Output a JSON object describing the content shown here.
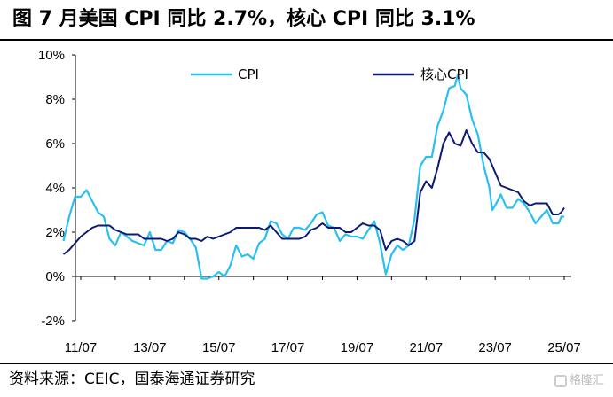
{
  "title": "图   7 月美国 CPI 同比 2.7%，核心 CPI 同比 3.1%",
  "source": "资料来源：CEIC，国泰海通证券研究",
  "watermark": "格隆汇",
  "chart_data": {
    "type": "line",
    "title": "图   7 月美国 CPI 同比 2.7%，核心 CPI 同比 3.1%",
    "xlabel": "",
    "ylabel": "",
    "x_ticks": [
      "11/07",
      "13/07",
      "15/07",
      "17/07",
      "19/07",
      "21/07",
      "23/07",
      "25/07"
    ],
    "y_ticks": [
      "-2%",
      "0%",
      "2%",
      "4%",
      "6%",
      "8%",
      "10%"
    ],
    "ylim": [
      -2,
      10
    ],
    "y_unit": "%",
    "grid": false,
    "legend_position": "top",
    "series": [
      {
        "name": "CPI",
        "color": "#29c0f0",
        "points": [
          [
            "2011-01",
            1.6
          ],
          [
            "2011-03",
            2.7
          ],
          [
            "2011-05",
            3.6
          ],
          [
            "2011-07",
            3.6
          ],
          [
            "2011-09",
            3.9
          ],
          [
            "2011-11",
            3.4
          ],
          [
            "2012-01",
            2.9
          ],
          [
            "2012-03",
            2.7
          ],
          [
            "2012-05",
            1.7
          ],
          [
            "2012-07",
            1.4
          ],
          [
            "2012-09",
            2.0
          ],
          [
            "2012-11",
            1.8
          ],
          [
            "2013-01",
            1.6
          ],
          [
            "2013-03",
            1.5
          ],
          [
            "2013-05",
            1.4
          ],
          [
            "2013-07",
            2.0
          ],
          [
            "2013-09",
            1.2
          ],
          [
            "2013-11",
            1.2
          ],
          [
            "2014-01",
            1.6
          ],
          [
            "2014-03",
            1.5
          ],
          [
            "2014-05",
            2.1
          ],
          [
            "2014-07",
            2.0
          ],
          [
            "2014-09",
            1.7
          ],
          [
            "2014-11",
            1.3
          ],
          [
            "2015-01",
            -0.1
          ],
          [
            "2015-03",
            -0.1
          ],
          [
            "2015-05",
            0.0
          ],
          [
            "2015-07",
            0.2
          ],
          [
            "2015-09",
            0.0
          ],
          [
            "2015-11",
            0.5
          ],
          [
            "2016-01",
            1.4
          ],
          [
            "2016-03",
            0.9
          ],
          [
            "2016-05",
            1.0
          ],
          [
            "2016-07",
            0.8
          ],
          [
            "2016-09",
            1.5
          ],
          [
            "2016-11",
            1.7
          ],
          [
            "2017-01",
            2.5
          ],
          [
            "2017-03",
            2.4
          ],
          [
            "2017-05",
            1.9
          ],
          [
            "2017-07",
            1.7
          ],
          [
            "2017-09",
            2.2
          ],
          [
            "2017-11",
            2.2
          ],
          [
            "2018-01",
            2.1
          ],
          [
            "2018-03",
            2.4
          ],
          [
            "2018-05",
            2.8
          ],
          [
            "2018-07",
            2.9
          ],
          [
            "2018-09",
            2.3
          ],
          [
            "2018-11",
            2.2
          ],
          [
            "2019-01",
            1.6
          ],
          [
            "2019-03",
            1.9
          ],
          [
            "2019-05",
            1.8
          ],
          [
            "2019-07",
            1.8
          ],
          [
            "2019-09",
            1.7
          ],
          [
            "2019-11",
            2.1
          ],
          [
            "2020-01",
            2.5
          ],
          [
            "2020-03",
            1.5
          ],
          [
            "2020-05",
            0.1
          ],
          [
            "2020-07",
            1.0
          ],
          [
            "2020-09",
            1.4
          ],
          [
            "2020-11",
            1.2
          ],
          [
            "2021-01",
            1.4
          ],
          [
            "2021-03",
            2.6
          ],
          [
            "2021-05",
            5.0
          ],
          [
            "2021-07",
            5.4
          ],
          [
            "2021-09",
            5.4
          ],
          [
            "2021-11",
            6.8
          ],
          [
            "2022-01",
            7.5
          ],
          [
            "2022-03",
            8.5
          ],
          [
            "2022-05",
            8.6
          ],
          [
            "2022-06",
            9.1
          ],
          [
            "2022-07",
            8.5
          ],
          [
            "2022-09",
            8.2
          ],
          [
            "2022-11",
            7.1
          ],
          [
            "2023-01",
            6.4
          ],
          [
            "2023-03",
            5.0
          ],
          [
            "2023-05",
            4.0
          ],
          [
            "2023-06",
            3.0
          ],
          [
            "2023-07",
            3.2
          ],
          [
            "2023-09",
            3.7
          ],
          [
            "2023-11",
            3.1
          ],
          [
            "2024-01",
            3.1
          ],
          [
            "2024-03",
            3.5
          ],
          [
            "2024-05",
            3.3
          ],
          [
            "2024-07",
            2.9
          ],
          [
            "2024-09",
            2.4
          ],
          [
            "2024-11",
            2.7
          ],
          [
            "2025-01",
            3.0
          ],
          [
            "2025-03",
            2.4
          ],
          [
            "2025-05",
            2.4
          ],
          [
            "2025-06",
            2.7
          ],
          [
            "2025-07",
            2.7
          ]
        ]
      },
      {
        "name": "核心CPI",
        "color": "#0d1a73",
        "points": [
          [
            "2011-01",
            1.0
          ],
          [
            "2011-03",
            1.2
          ],
          [
            "2011-05",
            1.5
          ],
          [
            "2011-07",
            1.8
          ],
          [
            "2011-09",
            2.0
          ],
          [
            "2011-11",
            2.2
          ],
          [
            "2012-01",
            2.3
          ],
          [
            "2012-03",
            2.3
          ],
          [
            "2012-05",
            2.3
          ],
          [
            "2012-07",
            2.1
          ],
          [
            "2012-09",
            2.0
          ],
          [
            "2012-11",
            1.9
          ],
          [
            "2013-01",
            1.9
          ],
          [
            "2013-03",
            1.9
          ],
          [
            "2013-05",
            1.7
          ],
          [
            "2013-07",
            1.7
          ],
          [
            "2013-09",
            1.7
          ],
          [
            "2013-11",
            1.7
          ],
          [
            "2014-01",
            1.6
          ],
          [
            "2014-03",
            1.7
          ],
          [
            "2014-05",
            2.0
          ],
          [
            "2014-07",
            1.9
          ],
          [
            "2014-09",
            1.7
          ],
          [
            "2014-11",
            1.7
          ],
          [
            "2015-01",
            1.6
          ],
          [
            "2015-03",
            1.8
          ],
          [
            "2015-05",
            1.7
          ],
          [
            "2015-07",
            1.8
          ],
          [
            "2015-09",
            1.9
          ],
          [
            "2015-11",
            2.0
          ],
          [
            "2016-01",
            2.2
          ],
          [
            "2016-03",
            2.2
          ],
          [
            "2016-05",
            2.2
          ],
          [
            "2016-07",
            2.2
          ],
          [
            "2016-09",
            2.2
          ],
          [
            "2016-11",
            2.1
          ],
          [
            "2017-01",
            2.3
          ],
          [
            "2017-03",
            2.0
          ],
          [
            "2017-05",
            1.7
          ],
          [
            "2017-07",
            1.7
          ],
          [
            "2017-09",
            1.7
          ],
          [
            "2017-11",
            1.7
          ],
          [
            "2018-01",
            1.8
          ],
          [
            "2018-03",
            2.1
          ],
          [
            "2018-05",
            2.2
          ],
          [
            "2018-07",
            2.4
          ],
          [
            "2018-09",
            2.2
          ],
          [
            "2018-11",
            2.2
          ],
          [
            "2019-01",
            2.2
          ],
          [
            "2019-03",
            2.0
          ],
          [
            "2019-05",
            2.0
          ],
          [
            "2019-07",
            2.2
          ],
          [
            "2019-09",
            2.4
          ],
          [
            "2019-11",
            2.3
          ],
          [
            "2020-01",
            2.3
          ],
          [
            "2020-03",
            2.1
          ],
          [
            "2020-05",
            1.2
          ],
          [
            "2020-07",
            1.6
          ],
          [
            "2020-09",
            1.7
          ],
          [
            "2020-11",
            1.6
          ],
          [
            "2021-01",
            1.4
          ],
          [
            "2021-03",
            1.6
          ],
          [
            "2021-05",
            3.8
          ],
          [
            "2021-07",
            4.3
          ],
          [
            "2021-09",
            4.0
          ],
          [
            "2021-11",
            4.9
          ],
          [
            "2022-01",
            6.0
          ],
          [
            "2022-03",
            6.5
          ],
          [
            "2022-05",
            6.0
          ],
          [
            "2022-07",
            5.9
          ],
          [
            "2022-09",
            6.6
          ],
          [
            "2022-11",
            6.0
          ],
          [
            "2023-01",
            5.6
          ],
          [
            "2023-03",
            5.6
          ],
          [
            "2023-05",
            5.3
          ],
          [
            "2023-07",
            4.7
          ],
          [
            "2023-09",
            4.1
          ],
          [
            "2023-11",
            4.0
          ],
          [
            "2024-01",
            3.9
          ],
          [
            "2024-03",
            3.8
          ],
          [
            "2024-05",
            3.4
          ],
          [
            "2024-07",
            3.2
          ],
          [
            "2024-09",
            3.3
          ],
          [
            "2024-11",
            3.3
          ],
          [
            "2025-01",
            3.3
          ],
          [
            "2025-03",
            2.8
          ],
          [
            "2025-05",
            2.8
          ],
          [
            "2025-06",
            2.9
          ],
          [
            "2025-07",
            3.1
          ]
        ]
      }
    ]
  }
}
